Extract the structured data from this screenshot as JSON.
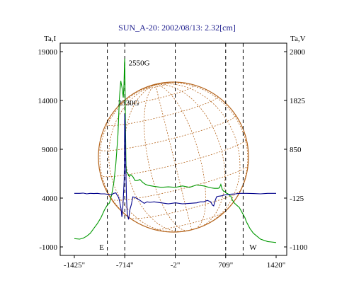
{
  "chart_data": {
    "type": "line",
    "title": "SUN_A-20: 2002/08/13: 2.32[cm]",
    "left_axis_label": "Ta,I",
    "right_axis_label": "Ta,V",
    "x_ticks": [
      "-1425\"",
      "-714\"",
      "-2\"",
      "709\"",
      "1420\""
    ],
    "x_tick_values": [
      -1425,
      -714,
      -2,
      709,
      1420
    ],
    "x_range": [
      -1425,
      1420
    ],
    "left_ticks": [
      "19000",
      "14000",
      "9000",
      "4000",
      "-1000"
    ],
    "left_tick_values": [
      19000,
      14000,
      9000,
      4000,
      -1000
    ],
    "left_range": [
      -1000,
      19000
    ],
    "right_ticks": [
      "2800",
      "1825",
      "850",
      "-125",
      "-1100"
    ],
    "right_tick_values": [
      2800,
      1825,
      850,
      -125,
      -1100
    ],
    "right_range": [
      -1100,
      2800
    ],
    "vertical_dashed_lines_x": [
      -714,
      -2,
      709
    ],
    "limb_markers": [
      {
        "label": "E",
        "x": -960
      },
      {
        "label": "W",
        "x": 955
      }
    ],
    "annotations": [
      {
        "text": "2550G",
        "x": -510,
        "y": 17600
      },
      {
        "text": "2330G",
        "x": -660,
        "y": 13500
      }
    ],
    "colors": {
      "I": "#009900",
      "V": "#00008b",
      "disk": "#b5651d",
      "title": "#1a1a8c"
    },
    "series": [
      {
        "axis": "left",
        "color": "#009900",
        "x": [
          -1425,
          -1350,
          -1300,
          -1250,
          -1200,
          -1150,
          -1100,
          -1050,
          -1000,
          -960,
          -930,
          -900,
          -870,
          -840,
          -810,
          -790,
          -770,
          -750,
          -735,
          -725,
          -718,
          -714,
          -710,
          -703,
          -696,
          -690,
          -683,
          -670,
          -650,
          -630,
          -600,
          -570,
          -540,
          -500,
          -460,
          -420,
          -380,
          -300,
          -200,
          -100,
          0,
          100,
          200,
          300,
          400,
          500,
          550,
          600,
          620,
          640,
          660,
          680,
          700,
          720,
          740,
          760,
          780,
          800,
          830,
          860,
          900,
          950,
          980,
          1000,
          1050,
          1100,
          1200,
          1300,
          1420
        ],
        "y": [
          -150,
          -200,
          -100,
          100,
          400,
          900,
          1400,
          2000,
          2800,
          3300,
          3500,
          4300,
          5500,
          7500,
          10500,
          14200,
          16000,
          15200,
          14300,
          15600,
          17800,
          18300,
          15600,
          11000,
          7300,
          6700,
          6600,
          6500,
          6200,
          6400,
          6200,
          5800,
          5800,
          5900,
          5600,
          5400,
          5300,
          5200,
          5100,
          5150,
          5100,
          5250,
          5100,
          5350,
          5250,
          5050,
          5000,
          5000,
          5050,
          5400,
          4900,
          4700,
          4650,
          4500,
          4450,
          4300,
          4200,
          3850,
          3500,
          3300,
          3050,
          2400,
          2000,
          1600,
          900,
          400,
          -200,
          -450,
          -550
        ]
      },
      {
        "axis": "right",
        "color": "#00008b",
        "x": [
          -1425,
          -1350,
          -1300,
          -1250,
          -1200,
          -1150,
          -1100,
          -1050,
          -1000,
          -950,
          -900,
          -870,
          -840,
          -820,
          -805,
          -795,
          -785,
          -775,
          -765,
          -755,
          -745,
          -735,
          -722,
          -714,
          -708,
          -700,
          -690,
          -680,
          -670,
          -660,
          -640,
          -620,
          -600,
          -560,
          -520,
          -480,
          -440,
          -400,
          -360,
          -300,
          -200,
          -100,
          0,
          100,
          200,
          300,
          350,
          400,
          450,
          500,
          520,
          540,
          560,
          580,
          600,
          650,
          700,
          750,
          800,
          850,
          900,
          1000,
          1100,
          1200,
          1300,
          1420
        ],
        "y": [
          -30,
          -30,
          -25,
          -40,
          -30,
          -35,
          -30,
          -40,
          -40,
          -50,
          -60,
          -30,
          -20,
          -70,
          -100,
          -140,
          -200,
          -280,
          -350,
          -500,
          -400,
          -150,
          250,
          1560,
          1300,
          560,
          -100,
          -400,
          -500,
          -550,
          -350,
          -250,
          -100,
          -120,
          -150,
          -190,
          -230,
          -200,
          -210,
          -200,
          -220,
          -240,
          -220,
          -240,
          -230,
          -220,
          -200,
          -200,
          -170,
          -200,
          -260,
          -280,
          -180,
          -100,
          -90,
          -80,
          -60,
          -50,
          -45,
          -40,
          -30,
          -30,
          -35,
          -40,
          -30,
          -30
        ]
      }
    ]
  }
}
